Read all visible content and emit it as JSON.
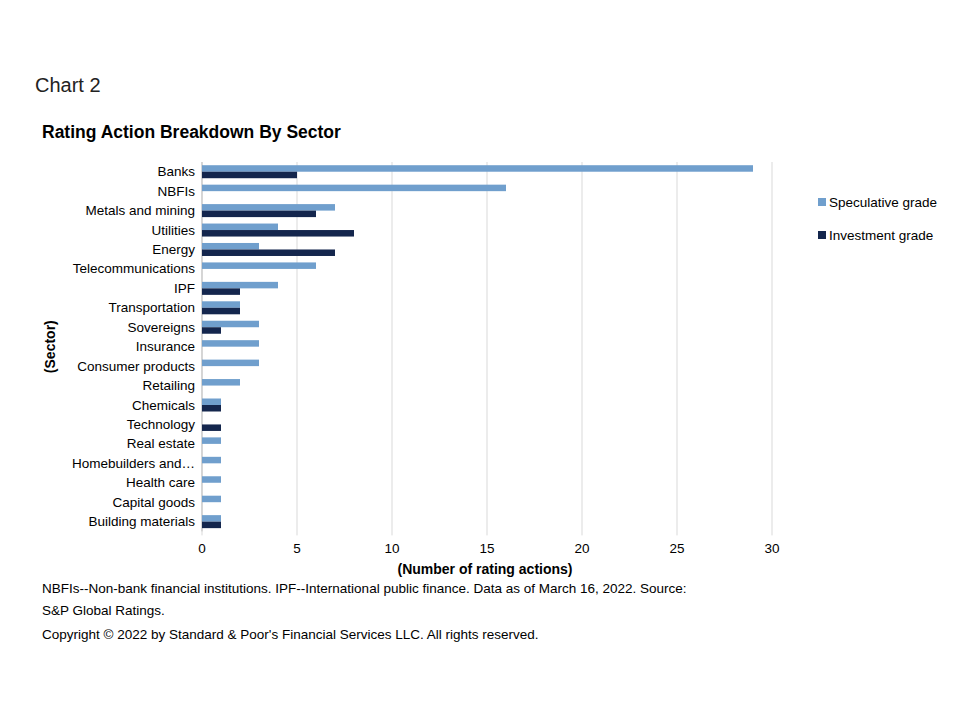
{
  "chart_data": {
    "type": "bar",
    "orientation": "horizontal",
    "caption": "Chart 2",
    "title": "Rating Action Breakdown By Sector",
    "x_label": "(Number of rating actions)",
    "y_label": "(Sector)",
    "categories": [
      "Banks",
      "NBFIs",
      "Metals and mining",
      "Utilities",
      "Energy",
      "Telecommunications",
      "IPF",
      "Transportation",
      "Sovereigns",
      "Insurance",
      "Consumer products",
      "Retailing",
      "Chemicals",
      "Technology",
      "Real estate",
      "Homebuilders and…",
      "Health care",
      "Capital goods",
      "Building materials"
    ],
    "series": [
      {
        "name": "Speculative grade",
        "color": "#709fcd",
        "values": [
          29,
          16,
          7,
          4,
          3,
          6,
          4,
          2,
          3,
          3,
          3,
          2,
          1,
          0,
          1,
          1,
          1,
          1,
          1
        ]
      },
      {
        "name": "Investment grade",
        "color": "#14264d",
        "values": [
          5,
          0,
          6,
          8,
          7,
          0,
          2,
          2,
          1,
          0,
          0,
          0,
          1,
          1,
          0,
          0,
          0,
          0,
          1
        ]
      }
    ],
    "xlim": [
      0,
      30
    ],
    "xticks": [
      0,
      5,
      10,
      15,
      20,
      25,
      30
    ],
    "grid": true,
    "legend": "right",
    "notes": [
      "NBFIs--Non-bank financial institutions. IPF--International public finance. Data as of March 16, 2022. Source:",
      "S&P Global Ratings.",
      "Copyright © 2022 by Standard & Poor's Financial Services LLC. All rights reserved."
    ]
  }
}
